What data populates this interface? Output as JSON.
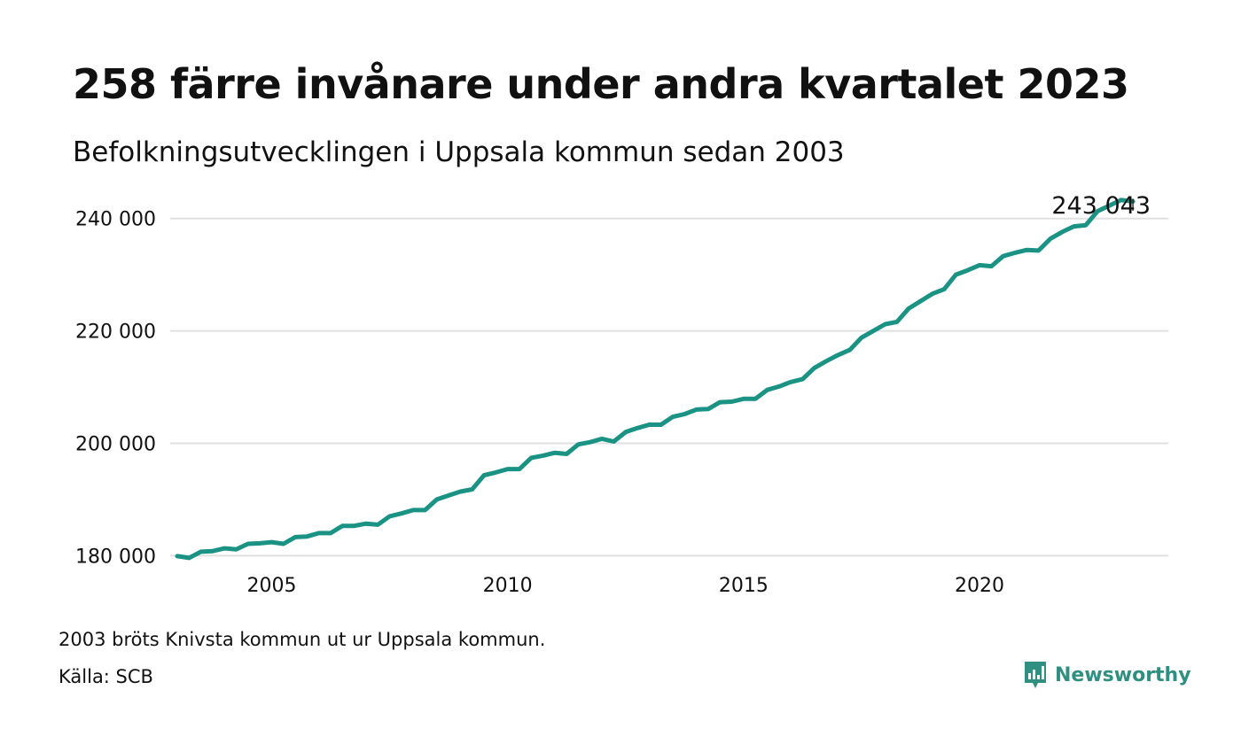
{
  "title": "258 färre invånare under andra kvartalet 2023",
  "subtitle": "Befolkningsutvecklingen i Uppsala kommun sedan 2003",
  "note": "2003 bröts Knivsta kommun ut ur Uppsala kommun.",
  "source": "Källa: SCB",
  "brand": "Newsworthy",
  "colors": {
    "line": "#1a9385",
    "grid": "#e0e0e0",
    "brand": "#2f8f80"
  },
  "chart_data": {
    "type": "line",
    "title": "258 färre invånare under andra kvartalet 2023",
    "subtitle": "Befolkningsutvecklingen i Uppsala kommun sedan 2003",
    "xlabel": "",
    "ylabel": "",
    "ylim": [
      178000,
      245000
    ],
    "xlim": [
      2002.85,
      2024.0
    ],
    "y_ticks": [
      180000,
      200000,
      220000,
      240000
    ],
    "y_tick_labels": [
      "180 000",
      "200 000",
      "220 000",
      "240 000"
    ],
    "x_ticks": [
      2005,
      2010,
      2015,
      2020
    ],
    "x_tick_labels": [
      "2005",
      "2010",
      "2015",
      "2020"
    ],
    "grid": true,
    "legend": "none",
    "end_label": "243 043",
    "series": [
      {
        "quarters": [
          "2003Q1",
          "2003Q2",
          "2003Q3",
          "2003Q4",
          "2004Q1",
          "2004Q2",
          "2004Q3",
          "2004Q4",
          "2005Q1",
          "2005Q2",
          "2005Q3",
          "2005Q4",
          "2006Q1",
          "2006Q2",
          "2006Q3",
          "2006Q4",
          "2007Q1",
          "2007Q2",
          "2007Q3",
          "2007Q4",
          "2008Q1",
          "2008Q2",
          "2008Q3",
          "2008Q4",
          "2009Q1",
          "2009Q2",
          "2009Q3",
          "2009Q4",
          "2010Q1",
          "2010Q2",
          "2010Q3",
          "2010Q4",
          "2011Q1",
          "2011Q2",
          "2011Q3",
          "2011Q4",
          "2012Q1",
          "2012Q2",
          "2012Q3",
          "2012Q4",
          "2013Q1",
          "2013Q2",
          "2013Q3",
          "2013Q4",
          "2014Q1",
          "2014Q2",
          "2014Q3",
          "2014Q4",
          "2015Q1",
          "2015Q2",
          "2015Q3",
          "2015Q4",
          "2016Q1",
          "2016Q2",
          "2016Q3",
          "2016Q4",
          "2017Q1",
          "2017Q2",
          "2017Q3",
          "2017Q4",
          "2018Q1",
          "2018Q2",
          "2018Q3",
          "2018Q4",
          "2019Q1",
          "2019Q2",
          "2019Q3",
          "2019Q4",
          "2020Q1",
          "2020Q2",
          "2020Q3",
          "2020Q4",
          "2021Q1",
          "2021Q2",
          "2021Q3",
          "2021Q4",
          "2022Q1",
          "2022Q2",
          "2022Q3",
          "2022Q4",
          "2023Q1",
          "2023Q2"
        ],
        "values": [
          179900,
          179600,
          180700,
          180800,
          181300,
          181100,
          182100,
          182200,
          182400,
          182100,
          183300,
          183400,
          184000,
          184000,
          185300,
          185300,
          185700,
          185500,
          187000,
          187500,
          188100,
          188100,
          190000,
          190700,
          191400,
          191800,
          194300,
          194800,
          195400,
          195400,
          197400,
          197800,
          198300,
          198100,
          199800,
          200200,
          200800,
          200300,
          202000,
          202700,
          203300,
          203300,
          204700,
          205200,
          206000,
          206100,
          207300,
          207400,
          207900,
          207900,
          209500,
          210100,
          210900,
          211400,
          213400,
          214600,
          215700,
          216600,
          218800,
          220000,
          221200,
          221600,
          224000,
          225300,
          226600,
          227400,
          230000,
          230800,
          231700,
          231500,
          233300,
          233900,
          234400,
          234300,
          236400,
          237600,
          238600,
          238800,
          241300,
          242300,
          243301,
          243043
        ]
      }
    ]
  }
}
